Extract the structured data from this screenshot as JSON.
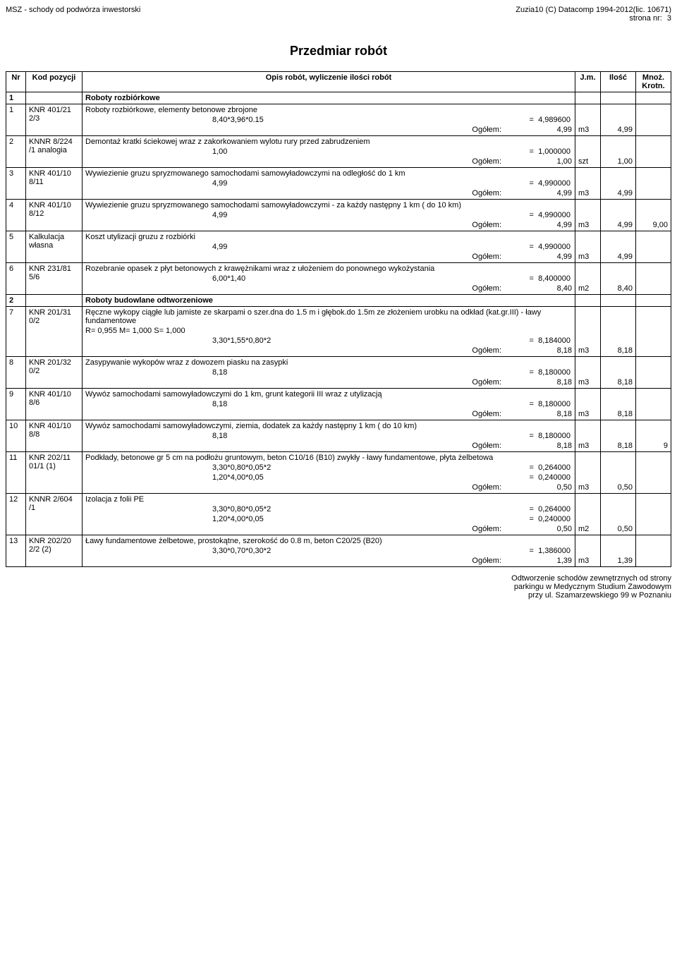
{
  "header": {
    "left": "MSZ  - schody od podwórza inwestorski",
    "right1": "Zuzia10 (C) Datacomp 1994-2012(lic. 10671)",
    "right2": "strona nr:",
    "page": "3"
  },
  "title": "Przedmiar robót",
  "columns": {
    "nr": "Nr",
    "kod": "Kod pozycji",
    "opis": "Opis robót, wyliczenie ilości robót",
    "jm": "J.m.",
    "ilosc": "Ilość",
    "mnoz": "Mnoż. Krotn."
  },
  "labels": {
    "ogolem": "Ogółem:",
    "eq": "="
  },
  "rows": [
    {
      "type": "section",
      "nr": "1",
      "opis": "Roboty rozbiórkowe"
    },
    {
      "type": "item",
      "nr": "1",
      "kod": "KNR 401/21 2/3",
      "desc": "Roboty rozbiórkowe, elementy betonowe zbrojone",
      "calcs": [
        {
          "expr": "8,40*3,96*0.15",
          "val": "4,989600"
        }
      ],
      "sum": "4,99",
      "jm": "m3",
      "ilosc": "4,99",
      "mnoz": ""
    },
    {
      "type": "item",
      "nr": "2",
      "kod": "KNNR 8/224 /1 analogia",
      "desc": "Demontaż kratki ściekowej wraz z zakorkowaniem wylotu rury przed zabrudzeniem",
      "calcs": [
        {
          "expr": "1,00",
          "val": "1,000000"
        }
      ],
      "sum": "1,00",
      "jm": "szt",
      "ilosc": "1,00",
      "mnoz": ""
    },
    {
      "type": "item",
      "nr": "3",
      "kod": "KNR 401/10 8/11",
      "desc": "Wywiezienie gruzu spryzmowanego samochodami samowyładowczymi na odległość do 1 km",
      "calcs": [
        {
          "expr": "4,99",
          "val": "4,990000"
        }
      ],
      "sum": "4,99",
      "jm": "m3",
      "ilosc": "4,99",
      "mnoz": ""
    },
    {
      "type": "item",
      "nr": "4",
      "kod": "KNR 401/10 8/12",
      "desc": "Wywiezienie gruzu spryzmowanego samochodami samowyładowczymi - za każdy następny 1 km ( do 10 km)",
      "calcs": [
        {
          "expr": "4,99",
          "val": "4,990000"
        }
      ],
      "sum": "4,99",
      "jm": "m3",
      "ilosc": "4,99",
      "mnoz": "9,00"
    },
    {
      "type": "item",
      "nr": "5",
      "kod": "Kalkulacja własna",
      "desc": "Koszt utylizacji gruzu z rozbiórki",
      "calcs": [
        {
          "expr": "4,99",
          "val": "4,990000"
        }
      ],
      "sum": "4,99",
      "jm": "m3",
      "ilosc": "4,99",
      "mnoz": ""
    },
    {
      "type": "item",
      "nr": "6",
      "kod": "KNR 231/81 5/6",
      "desc": "Rozebranie opasek z  płyt betonowych   z krawężnikami wraz z ułożeniem do ponownego wykożystania",
      "calcs": [
        {
          "expr": "6,00*1,40",
          "val": "8,400000"
        }
      ],
      "sum": "8,40",
      "jm": "m2",
      "ilosc": "8,40",
      "mnoz": ""
    },
    {
      "type": "section",
      "nr": "2",
      "opis": "Roboty budowlane odtworzeniowe"
    },
    {
      "type": "item",
      "nr": "7",
      "kod": "KNR 201/31 0/2",
      "desc": "Ręczne wykopy ciągłe lub jamiste ze skarpami o szer.dna do 1.5 m i głębok.do 1.5m ze złożeniem urobku na odkład (kat.gr.III) - ławy fundamentowe",
      "extra": "R= 0,955   M= 1,000   S= 1,000",
      "calcs": [
        {
          "expr": "3,30*1,55*0,80*2",
          "val": "8,184000"
        }
      ],
      "sum": "8,18",
      "jm": "m3",
      "ilosc": "8,18",
      "mnoz": ""
    },
    {
      "type": "item",
      "nr": "8",
      "kod": "KNR 201/32 0/2",
      "desc": "Zasypywanie wykopów wraz z dowozem piasku na zasypki",
      "calcs": [
        {
          "expr": "8,18",
          "val": "8,180000"
        }
      ],
      "sum": "8,18",
      "jm": "m3",
      "ilosc": "8,18",
      "mnoz": ""
    },
    {
      "type": "item",
      "nr": "9",
      "kod": "KNR 401/10 8/6",
      "desc": "Wywóz samochodami samowyładowczymi do 1 km, grunt kategorii III wraz z utylizacją",
      "calcs": [
        {
          "expr": "8,18",
          "val": "8,180000"
        }
      ],
      "sum": "8,18",
      "jm": "m3",
      "ilosc": "8,18",
      "mnoz": ""
    },
    {
      "type": "item",
      "nr": "10",
      "kod": "KNR 401/10 8/8",
      "desc": "Wywóz samochodami samowyładowczymi, ziemia, dodatek za każdy następny 1 km ( do 10 km)",
      "calcs": [
        {
          "expr": "8,18",
          "val": "8,180000"
        }
      ],
      "sum": "8,18",
      "jm": "m3",
      "ilosc": "8,18",
      "mnoz": "9"
    },
    {
      "type": "item",
      "nr": "11",
      "kod": "KNR 202/11 01/1 (1)",
      "desc": "Podkłady, betonowe gr 5 cm na podłożu gruntowym, beton C10/16 (B10)  zwykły - ławy fundamentowe, płyta żelbetowa",
      "calcs": [
        {
          "expr": "3,30*0,80*0,05*2",
          "val": "0,264000"
        },
        {
          "expr": "1,20*4,00*0,05",
          "val": "0,240000"
        }
      ],
      "sum": "0,50",
      "jm": "m3",
      "ilosc": "0,50",
      "mnoz": ""
    },
    {
      "type": "item",
      "nr": "12",
      "kod": "KNNR 2/604 /1",
      "desc": "Izolacja z folii PE",
      "calcs": [
        {
          "expr": "3,30*0,80*0,05*2",
          "val": "0,264000"
        },
        {
          "expr": "1,20*4,00*0,05",
          "val": "0,240000"
        }
      ],
      "sum": "0,50",
      "jm": "m2",
      "ilosc": "0,50",
      "mnoz": ""
    },
    {
      "type": "item",
      "nr": "13",
      "kod": "KNR 202/20 2/2 (2)",
      "desc": "Ławy fundamentowe żelbetowe, prostokątne, szerokość do 0.8 m, beton  C20/25 (B20)",
      "calcs": [
        {
          "expr": "3,30*0,70*0,30*2",
          "val": "1,386000"
        }
      ],
      "sum": "1,39",
      "jm": "m3",
      "ilosc": "1,39",
      "mnoz": ""
    }
  ],
  "footer": {
    "l1": "Odtworzenie schodów zewnętrznych od strony",
    "l2": "parkingu w Medycznym Studium Zawodowym",
    "l3": "przy ul. Szamarzewskiego 99 w Poznaniu"
  }
}
